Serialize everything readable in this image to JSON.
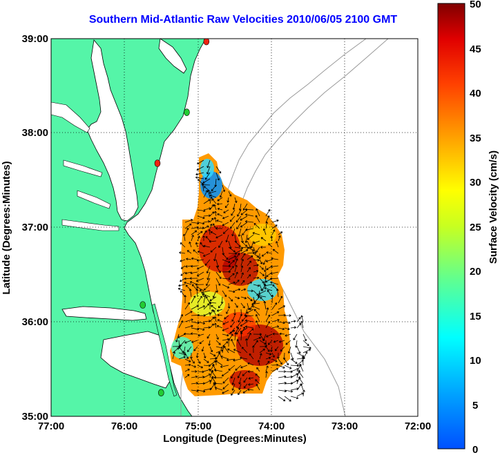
{
  "title": "Southern Mid-Atlantic Raw Velocities 2010/06/05 2100 GMT",
  "x_axis": {
    "label": "Longitude (Degrees:Minutes)",
    "ticks": [
      "77:00",
      "76:00",
      "75:00",
      "74:00",
      "73:00",
      "72:00"
    ]
  },
  "y_axis": {
    "label": "Latitude (Degrees:Minutes)",
    "ticks": [
      "39:00",
      "38:00",
      "37:00",
      "36:00",
      "35:00"
    ]
  },
  "colorbar": {
    "label": "Surface Velocity (cm/s)",
    "ticks": [
      "50",
      "45",
      "40",
      "35",
      "30",
      "25",
      "20",
      "15",
      "10",
      "5",
      "0"
    ],
    "range": [
      0,
      50
    ],
    "colormap": "jet"
  },
  "colors": {
    "land": "#55f5a8",
    "water": "#ffffff",
    "title": "#0000ff",
    "station_green": "#22cc33",
    "station_red": "#ee2211"
  },
  "map_bounds": {
    "lon": [
      -77,
      -72
    ],
    "lat": [
      35,
      39
    ]
  },
  "stations": [
    {
      "lon": -74.883,
      "lat": 38.97,
      "color": "red"
    },
    {
      "lon": -75.15,
      "lat": 38.22,
      "color": "green"
    },
    {
      "lon": -75.55,
      "lat": 37.68,
      "color": "red"
    },
    {
      "lon": -75.75,
      "lat": 36.18,
      "color": "green"
    },
    {
      "lon": -75.5,
      "lat": 35.25,
      "color": "green"
    }
  ]
}
